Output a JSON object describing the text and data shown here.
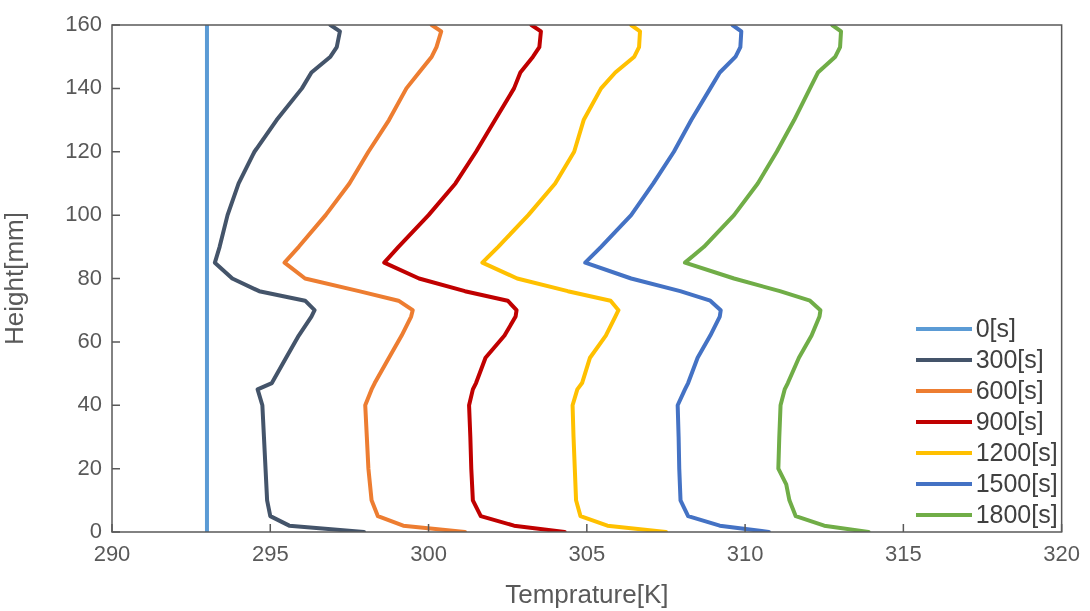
{
  "chart_data": {
    "type": "line",
    "xlabel": "Temprature[K]",
    "ylabel": "Height[mm]",
    "xlim": [
      290,
      320
    ],
    "xticks": [
      290,
      295,
      300,
      305,
      310,
      315,
      320
    ],
    "ylim": [
      0,
      160
    ],
    "yticks": [
      0,
      20,
      40,
      60,
      80,
      100,
      120,
      140,
      160
    ],
    "grid": false,
    "legend": "bottom right",
    "marker": "none",
    "line_style": "solid",
    "series": [
      {
        "name": "0[s]",
        "color": "#5b9bd5",
        "x": [
          293.0,
          293.0
        ],
        "values": [
          0,
          160
        ]
      },
      {
        "name": "300[s]",
        "color": "#44546a",
        "x": [
          297.96,
          295.6,
          295.0,
          294.9,
          294.85,
          294.8,
          294.75,
          294.6,
          295.05,
          295.5,
          295.9,
          296.3,
          296.4,
          296.1,
          294.65,
          293.8,
          293.25,
          293.4,
          293.65,
          294.0,
          294.5,
          295.2,
          296.0,
          296.3,
          296.9,
          297.1,
          297.2,
          296.9
        ],
        "values": [
          0,
          2,
          5,
          10,
          20,
          30,
          40,
          45,
          47,
          55,
          62,
          68,
          70,
          73,
          76,
          80,
          85,
          90,
          100,
          110,
          120,
          130,
          140,
          145,
          150,
          153,
          158,
          160
        ]
      },
      {
        "name": "600[s]",
        "color": "#ed7d31",
        "x": [
          301.15,
          299.2,
          298.4,
          298.2,
          298.1,
          298.05,
          298.0,
          298.2,
          298.3,
          298.75,
          299.15,
          299.45,
          299.5,
          299.05,
          297.8,
          296.1,
          295.45,
          295.9,
          296.75,
          297.5,
          298.1,
          298.75,
          299.3,
          299.7,
          300.1,
          300.25,
          300.4,
          300.1
        ],
        "values": [
          0,
          2,
          5,
          10,
          20,
          30,
          40,
          45,
          47,
          55,
          62,
          68,
          70,
          73,
          76,
          80,
          85,
          90,
          100,
          110,
          120,
          130,
          140,
          145,
          150,
          153,
          158,
          160
        ]
      },
      {
        "name": "900[s]",
        "color": "#c00000",
        "x": [
          304.3,
          302.7,
          301.65,
          301.4,
          301.35,
          301.32,
          301.28,
          301.4,
          301.5,
          301.8,
          302.4,
          302.75,
          302.78,
          302.5,
          301.15,
          299.7,
          298.6,
          299.05,
          300.0,
          300.85,
          301.5,
          302.1,
          302.7,
          302.9,
          303.3,
          303.5,
          303.55,
          303.25
        ],
        "values": [
          0,
          2,
          5,
          10,
          20,
          30,
          40,
          45,
          47,
          55,
          62,
          68,
          70,
          73,
          76,
          80,
          85,
          90,
          100,
          110,
          120,
          130,
          140,
          145,
          150,
          153,
          158,
          160
        ]
      },
      {
        "name": "1200[s]",
        "color": "#ffc000",
        "x": [
          307.5,
          305.65,
          304.8,
          304.66,
          304.62,
          304.58,
          304.55,
          304.7,
          304.85,
          305.1,
          305.6,
          305.9,
          306.0,
          305.75,
          304.4,
          302.8,
          301.7,
          302.2,
          303.15,
          304.0,
          304.6,
          304.9,
          305.45,
          305.9,
          306.5,
          306.65,
          306.68,
          306.4
        ],
        "values": [
          0,
          2,
          5,
          10,
          20,
          30,
          40,
          45,
          47,
          55,
          62,
          68,
          70,
          73,
          76,
          80,
          85,
          90,
          100,
          110,
          120,
          130,
          140,
          145,
          150,
          153,
          158,
          160
        ]
      },
      {
        "name": "1500[s]",
        "color": "#4472c4",
        "x": [
          310.75,
          309.2,
          308.2,
          307.96,
          307.92,
          307.9,
          307.87,
          308.1,
          308.2,
          308.5,
          308.9,
          309.2,
          309.23,
          308.9,
          307.95,
          306.4,
          304.95,
          305.45,
          306.4,
          307.1,
          307.75,
          308.3,
          308.9,
          309.2,
          309.7,
          309.85,
          309.88,
          309.6
        ],
        "values": [
          0,
          2,
          5,
          10,
          20,
          30,
          40,
          45,
          47,
          55,
          62,
          68,
          70,
          73,
          76,
          80,
          85,
          90,
          100,
          110,
          120,
          130,
          140,
          145,
          150,
          153,
          158,
          160
        ]
      },
      {
        "name": "1800[s]",
        "color": "#70ad47",
        "x": [
          313.9,
          312.5,
          311.6,
          311.4,
          311.3,
          311.05,
          311.08,
          311.12,
          311.25,
          311.35,
          311.7,
          312.1,
          312.35,
          312.38,
          312.05,
          311.1,
          309.65,
          308.1,
          308.7,
          309.65,
          310.4,
          311.0,
          311.55,
          312.05,
          312.3,
          312.85,
          313.0,
          313.03,
          312.75
        ],
        "values": [
          0,
          2,
          5,
          10,
          15,
          20,
          30,
          40,
          45,
          47,
          55,
          62,
          68,
          70,
          73,
          76,
          80,
          85,
          90,
          100,
          110,
          120,
          130,
          140,
          145,
          150,
          153,
          158,
          160
        ]
      }
    ]
  }
}
